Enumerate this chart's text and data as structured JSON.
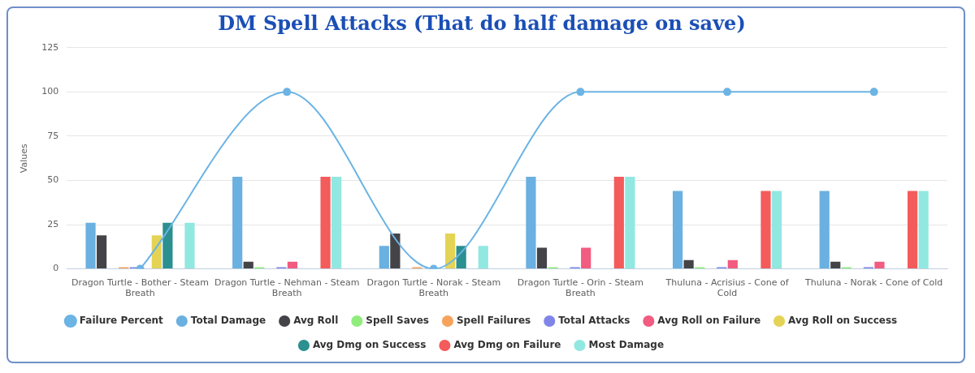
{
  "chart_data": {
    "type": "bar",
    "title": "DM Spell Attacks (That do half damage on save)",
    "ylabel": "Values",
    "categories": [
      "Dragon Turtle - Bother - Steam Breath",
      "Dragon Turtle - Nehman - Steam Breath",
      "Dragon Turtle - Norak - Steam Breath",
      "Dragon Turtle - Orin - Steam Breath",
      "Thuluna - Acrisius - Cone of Cold",
      "Thuluna - Norak - Cone of Cold"
    ],
    "series": [
      {
        "name": "Total Damage",
        "color": "#6ab0e0",
        "values": [
          26,
          52,
          13,
          52,
          44,
          44
        ]
      },
      {
        "name": "Avg Roll",
        "color": "#434348",
        "values": [
          19,
          4,
          20,
          12,
          5,
          4
        ]
      },
      {
        "name": "Spell Saves",
        "color": "#90ed7d",
        "values": [
          0,
          1,
          0,
          1,
          1,
          1
        ]
      },
      {
        "name": "Spell Failures",
        "color": "#f7a35c",
        "values": [
          1,
          0,
          1,
          0,
          0,
          0
        ]
      },
      {
        "name": "Total Attacks",
        "color": "#8085e9",
        "values": [
          1,
          1,
          null,
          1,
          1,
          1
        ]
      },
      {
        "name": "Avg Roll on Failure",
        "color": "#f15c80",
        "values": [
          0,
          4,
          0,
          12,
          5,
          4
        ]
      },
      {
        "name": "Avg Roll on Success",
        "color": "#e4d354",
        "values": [
          19,
          0,
          20,
          0,
          0,
          0
        ]
      },
      {
        "name": "Avg Dmg on Success",
        "color": "#2b908f",
        "values": [
          26,
          0,
          13,
          0,
          0,
          0
        ]
      },
      {
        "name": "Avg Dmg on Failure",
        "color": "#f45b5b",
        "values": [
          0,
          52,
          0,
          52,
          44,
          44
        ]
      },
      {
        "name": "Most Damage",
        "color": "#91e8e1",
        "values": [
          26,
          52,
          13,
          52,
          44,
          44
        ]
      },
      {
        "name": "Failure Percent",
        "type": "line",
        "color": "#6cb4e4",
        "values": [
          0,
          100,
          0,
          100,
          100,
          100
        ]
      }
    ],
    "ylim": [
      0,
      125
    ],
    "yticks": [
      0,
      25,
      50,
      75,
      100,
      125
    ],
    "grid": "y",
    "legend": "bottom",
    "marker": "circle"
  }
}
